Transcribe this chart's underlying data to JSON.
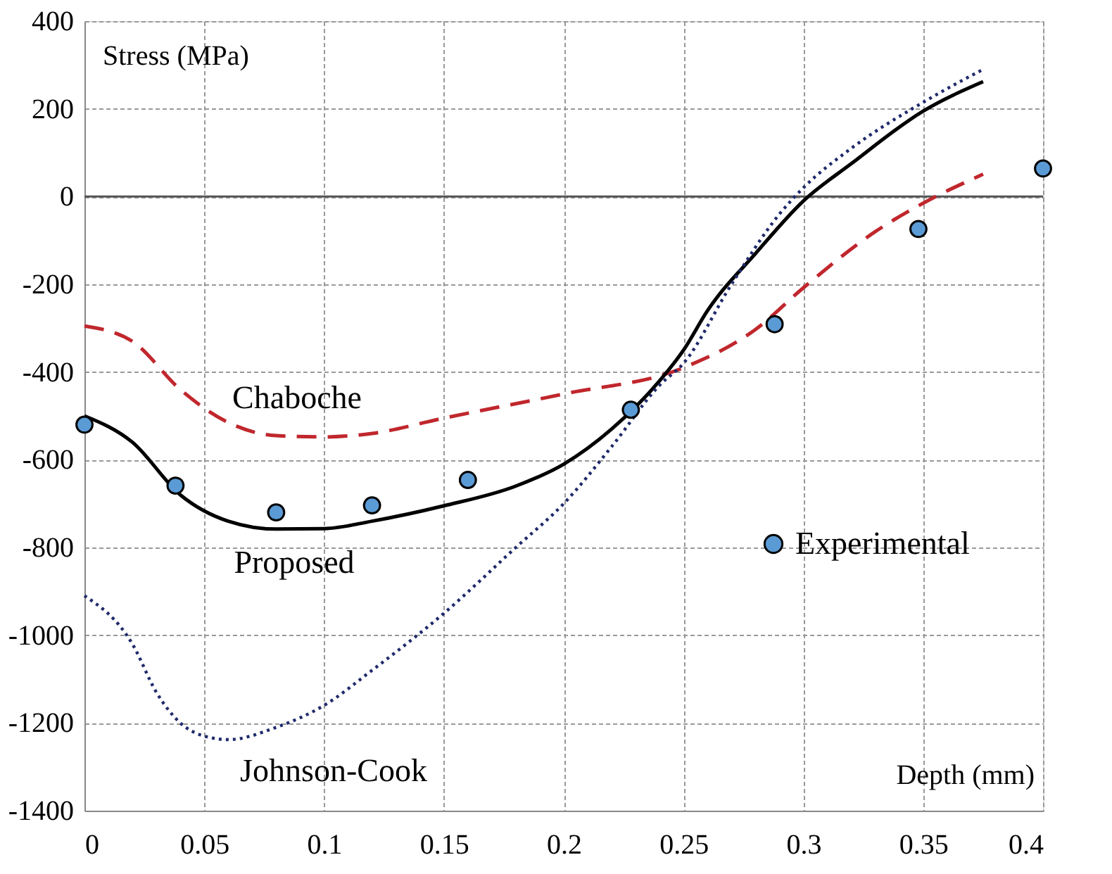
{
  "chart_data": {
    "type": "line",
    "xlabel": "Depth (mm)",
    "ylabel": "Stress (MPa)",
    "xlim": [
      0,
      0.4
    ],
    "xticks": [
      0,
      0.05,
      0.1,
      0.15,
      0.2,
      0.25,
      0.3,
      0.35,
      0.4
    ],
    "ylim": [
      -1400,
      400
    ],
    "yticks": [
      -1400,
      -1200,
      -1000,
      -800,
      -600,
      -400,
      -200,
      0,
      200,
      400
    ],
    "grid": true,
    "legend": "right",
    "ref_lines": [
      {
        "axis": "y",
        "value": 0,
        "color": "#555555",
        "line_style": "solid"
      }
    ],
    "series": [
      {
        "name": "Chaboche",
        "color": "#c0272d",
        "line_style": "dashed",
        "x": [
          0,
          0.02,
          0.04,
          0.06,
          0.08,
          0.1,
          0.12,
          0.15,
          0.2,
          0.25,
          0.28,
          0.3,
          0.33,
          0.35,
          0.375
        ],
        "values": [
          -295,
          -330,
          -440,
          -515,
          -545,
          -548,
          -540,
          -505,
          -450,
          -390,
          -303,
          -208,
          -80,
          -15,
          51
        ]
      },
      {
        "name": "Proposed",
        "color": "#000000",
        "line_style": "solid",
        "x": [
          0,
          0.02,
          0.04,
          0.06,
          0.08,
          0.1,
          0.12,
          0.15,
          0.18,
          0.2,
          0.22,
          0.24,
          0.25,
          0.26,
          0.28,
          0.3,
          0.32,
          0.35,
          0.375
        ],
        "values": [
          -500,
          -560,
          -680,
          -740,
          -758,
          -757,
          -740,
          -705,
          -660,
          -610,
          -530,
          -420,
          -350,
          -260,
          -130,
          -10,
          75,
          195,
          262
        ]
      },
      {
        "name": "Johnson-Cook",
        "color": "#1f2a6b",
        "line_style": "dotted",
        "x": [
          0,
          0.02,
          0.03,
          0.04,
          0.05,
          0.06,
          0.08,
          0.1,
          0.12,
          0.15,
          0.18,
          0.2,
          0.22,
          0.24,
          0.25,
          0.27,
          0.29,
          0.3,
          0.32,
          0.35,
          0.375
        ],
        "values": [
          -910,
          -1020,
          -1130,
          -1200,
          -1230,
          -1238,
          -1210,
          -1160,
          -1080,
          -950,
          -800,
          -700,
          -570,
          -430,
          -380,
          -200,
          -40,
          20,
          110,
          215,
          290
        ]
      },
      {
        "name": "Experimental",
        "type": "scatter",
        "color": "#5b9bd5",
        "marker": "circle",
        "x": [
          0,
          0.038,
          0.08,
          0.12,
          0.16,
          0.228,
          0.288,
          0.348,
          0.4
        ],
        "values": [
          -520,
          -659,
          -720,
          -704,
          -646,
          -486,
          -291,
          -74,
          64
        ]
      }
    ]
  }
}
